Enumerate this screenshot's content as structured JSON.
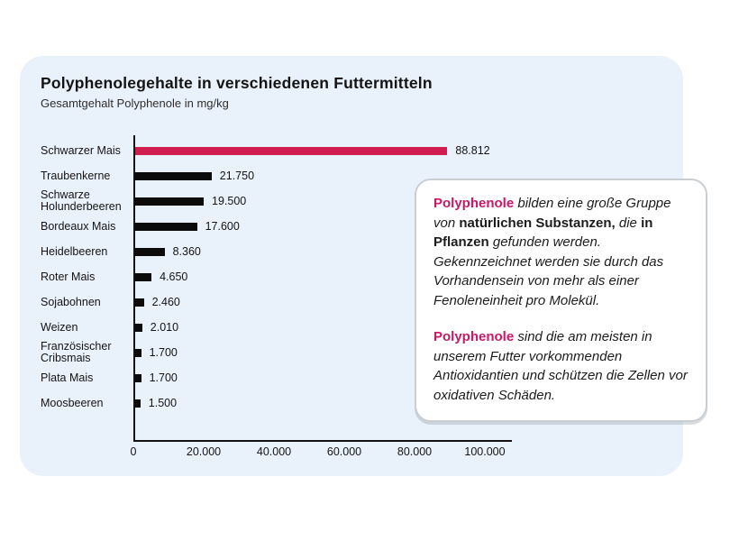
{
  "page": {
    "background": "#ffffff"
  },
  "card": {
    "background": "#E9F1FA"
  },
  "header": {
    "title": "Polyphenolegehalte in verschiedenen Futtermitteln",
    "subtitle": "Gesamtgehalt Polyphenole in mg/kg"
  },
  "chart_data": {
    "type": "bar",
    "orientation": "horizontal",
    "title": "Polyphenolegehalte in verschiedenen Futtermitteln",
    "xlabel": "Gesamtgehalt Polyphenole in mg/kg",
    "categories": [
      "Schwarzer Mais",
      "Traubenkerne",
      "Schwarze Holunderbeeren",
      "Bordeaux Mais",
      "Heidelbeeren",
      "Roter Mais",
      "Sojabohnen",
      "Weizen",
      "Französischer Cribsmais",
      "Plata Mais",
      "Moosbeeren"
    ],
    "values": [
      88812,
      21750,
      19500,
      17600,
      8360,
      4650,
      2460,
      2010,
      1700,
      1700,
      1500
    ],
    "value_labels": [
      "88.812",
      "21.750",
      "19.500",
      "17.600",
      "8.360",
      "4.650",
      "2.460",
      "2.010",
      "1.700",
      "1.700",
      "1.500"
    ],
    "highlight_index": 0,
    "bar_colors": {
      "default": "#0B0B0B",
      "highlight": "#D01C4E"
    },
    "xlim": [
      0,
      100000
    ],
    "x_ticks": [
      {
        "value": 0,
        "label": "0"
      },
      {
        "value": 20000,
        "label": "20.000"
      },
      {
        "value": 40000,
        "label": "40.000"
      },
      {
        "value": 60000,
        "label": "60.000"
      },
      {
        "value": 80000,
        "label": "80.000"
      },
      {
        "value": 100000,
        "label": "100.000"
      }
    ],
    "grid": false,
    "legend": false
  },
  "info_box": {
    "accent_color": "#C41A68",
    "paragraphs": [
      {
        "segments": [
          {
            "text": "Polyphenole",
            "style": "accent"
          },
          {
            "text": " bilden eine große Gruppe von ",
            "style": "italic"
          },
          {
            "text": "natürlichen Substanzen,",
            "style": "bold"
          },
          {
            "text": " die ",
            "style": "italic"
          },
          {
            "text": "in Pflanzen",
            "style": "bold"
          },
          {
            "text": " gefunden werden. Gekennzeichnet werden sie durch das Vorhandensein von mehr als einer Fenoleneinheit pro Molekül.",
            "style": "italic"
          }
        ]
      },
      {
        "segments": [
          {
            "text": "Polyphenole",
            "style": "accent"
          },
          {
            "text": " sind die am meisten in unserem Futter vorkommenden Antioxidantien und schützen die Zellen vor oxidativen Schäden.",
            "style": "italic"
          }
        ]
      }
    ]
  }
}
